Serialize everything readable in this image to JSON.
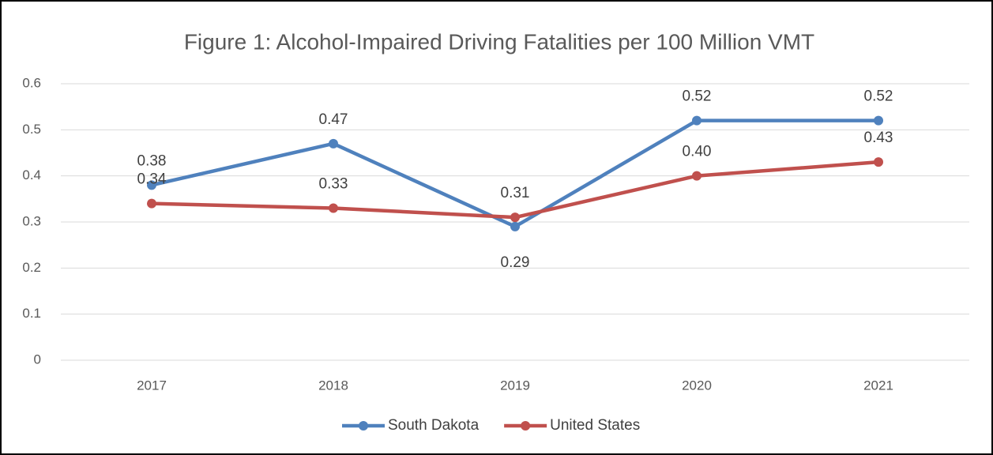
{
  "chart_data": {
    "type": "line",
    "title": "Figure 1: Alcohol-Impaired Driving Fatalities per 100 Million VMT",
    "categories": [
      "2017",
      "2018",
      "2019",
      "2020",
      "2021"
    ],
    "series": [
      {
        "name": "South Dakota",
        "color": "#4f81bd",
        "values": [
          0.38,
          0.47,
          0.29,
          0.52,
          0.52
        ],
        "value_labels": [
          "0.38",
          "0.47",
          "0.29",
          "0.52",
          "0.52"
        ]
      },
      {
        "name": "United States",
        "color": "#c0504d",
        "values": [
          0.34,
          0.33,
          0.31,
          0.4,
          0.43
        ],
        "value_labels": [
          "0.34",
          "0.33",
          "0.31",
          "0.40",
          "0.43"
        ]
      }
    ],
    "ylim": [
      0,
      0.6
    ],
    "yticks": [
      0,
      0.1,
      0.2,
      0.3,
      0.4,
      0.5,
      0.6
    ],
    "grid": true,
    "legend": "bottom"
  }
}
